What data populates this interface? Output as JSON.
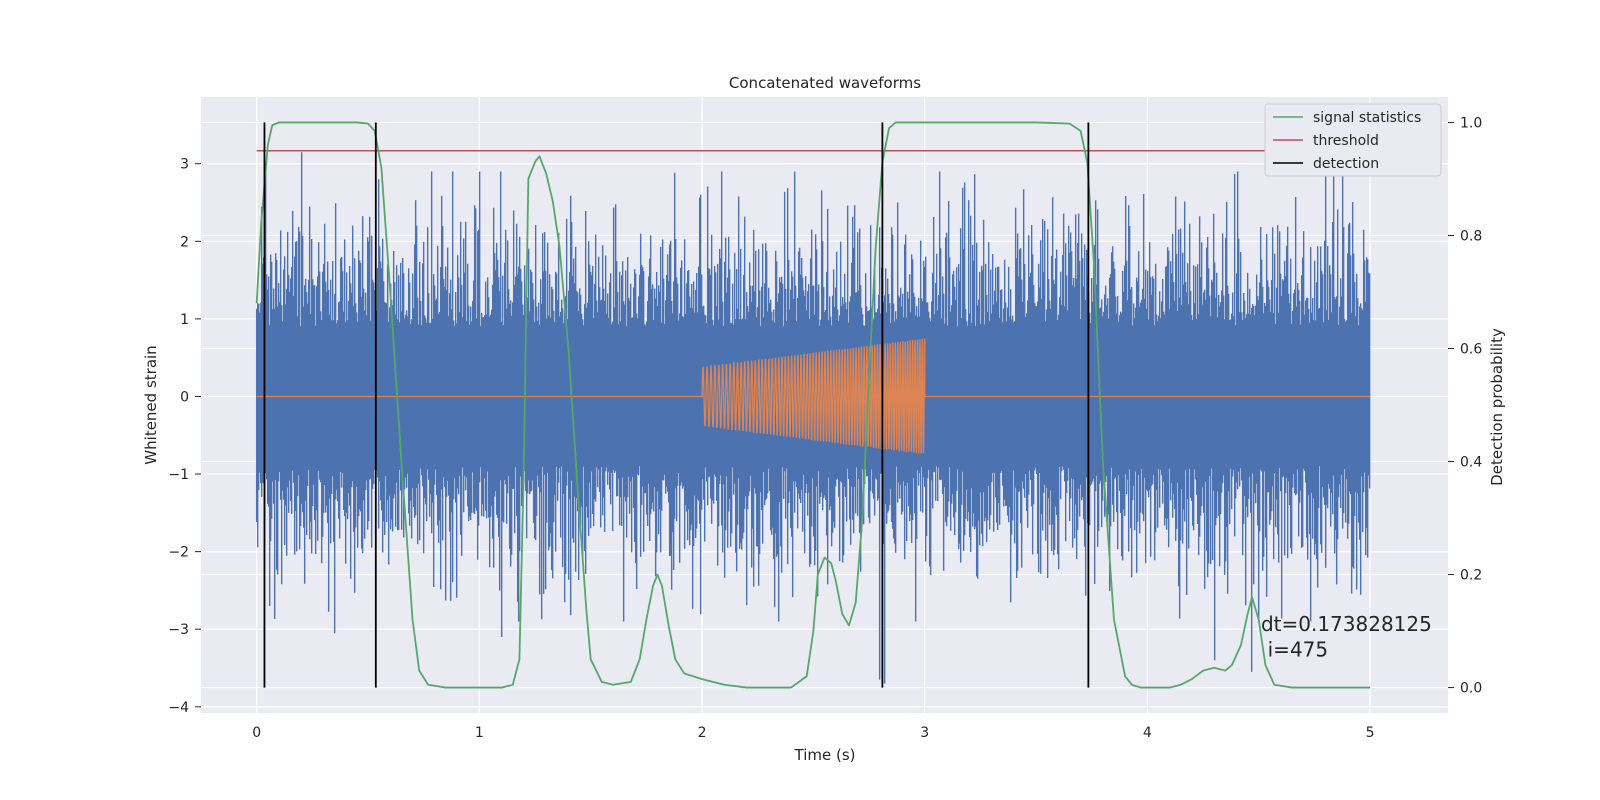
{
  "chart_data": {
    "type": "line",
    "title": "Concatenated waveforms",
    "xlabel": "Time (s)",
    "ylabel": "Whitened strain",
    "y2label": "Detection probability",
    "xlim": [
      -0.25,
      5.35
    ],
    "ylim": [
      -4.08,
      3.86
    ],
    "y2lim": [
      -0.045,
      1.045
    ],
    "x_ticks": [
      0,
      1,
      2,
      3,
      4,
      5
    ],
    "x_tick_labels": [
      "0",
      "1",
      "2",
      "3",
      "4",
      "5"
    ],
    "y_ticks": [
      -4,
      -3,
      -2,
      -1,
      0,
      1,
      2,
      3
    ],
    "y_tick_labels": [
      "−4",
      "−3",
      "−2",
      "−1",
      "0",
      "1",
      "2",
      "3"
    ],
    "y2_ticks": [
      0.0,
      0.2,
      0.4,
      0.6,
      0.8,
      1.0
    ],
    "y2_tick_labels": [
      "0.0",
      "0.2",
      "0.4",
      "0.6",
      "0.8",
      "1.0"
    ],
    "grid": true,
    "legend_position": "top-right",
    "series": [
      {
        "name": "",
        "kind": "noise",
        "axis": "left",
        "color": "#4c72b0",
        "x_range": [
          0,
          5
        ],
        "typical_range": [
          -2.6,
          2.6
        ],
        "peaks": [
          {
            "x": 0.04,
            "y": 3.0
          },
          {
            "x": 0.2,
            "y": 3.15
          },
          {
            "x": 0.55,
            "y": 2.8
          },
          {
            "x": 0.06,
            "y": -2.7
          },
          {
            "x": 0.35,
            "y": -3.05
          },
          {
            "x": 1.1,
            "y": -3.1
          },
          {
            "x": 2.8,
            "y": -3.65
          },
          {
            "x": 2.82,
            "y": -3.7
          },
          {
            "x": 4.3,
            "y": -3.4
          },
          {
            "x": 4.47,
            "y": -3.55
          }
        ]
      },
      {
        "name": "",
        "kind": "chirp",
        "axis": "left",
        "color": "#dd8452",
        "x_range": [
          2,
          3
        ],
        "amplitude_start": 0.38,
        "amplitude_end": 0.75
      },
      {
        "name": "signal statistics",
        "axis": "right",
        "color": "#55a868",
        "x": [
          0,
          0.02,
          0.05,
          0.07,
          0.1,
          0.15,
          0.3,
          0.45,
          0.5,
          0.53,
          0.56,
          0.6,
          0.65,
          0.7,
          0.73,
          0.77,
          0.85,
          1.0,
          1.1,
          1.15,
          1.18,
          1.2,
          1.22,
          1.25,
          1.27,
          1.3,
          1.33,
          1.36,
          1.4,
          1.44,
          1.48,
          1.5,
          1.55,
          1.6,
          1.68,
          1.72,
          1.75,
          1.78,
          1.8,
          1.82,
          1.85,
          1.88,
          1.92,
          2.0,
          2.1,
          2.2,
          2.4,
          2.47,
          2.5,
          2.52,
          2.55,
          2.58,
          2.6,
          2.63,
          2.66,
          2.69,
          2.72,
          2.75,
          2.78,
          2.81,
          2.84,
          2.87,
          2.9,
          2.95,
          3.2,
          3.5,
          3.65,
          3.7,
          3.73,
          3.76,
          3.8,
          3.85,
          3.9,
          3.93,
          3.97,
          4.0,
          4.1,
          4.15,
          4.2,
          4.25,
          4.3,
          4.35,
          4.38,
          4.42,
          4.45,
          4.47,
          4.5,
          4.53,
          4.57,
          4.65,
          4.8,
          5.0
        ],
        "values": [
          0.68,
          0.82,
          0.96,
          0.995,
          1.0,
          1.0,
          1.0,
          1.0,
          0.998,
          0.985,
          0.92,
          0.7,
          0.4,
          0.12,
          0.03,
          0.005,
          0.0,
          0.0,
          0.0,
          0.005,
          0.05,
          0.4,
          0.9,
          0.93,
          0.94,
          0.91,
          0.86,
          0.78,
          0.6,
          0.36,
          0.14,
          0.05,
          0.01,
          0.005,
          0.01,
          0.05,
          0.12,
          0.18,
          0.2,
          0.18,
          0.11,
          0.05,
          0.025,
          0.015,
          0.005,
          0.0,
          0.0,
          0.02,
          0.1,
          0.2,
          0.23,
          0.22,
          0.19,
          0.13,
          0.11,
          0.15,
          0.3,
          0.55,
          0.78,
          0.93,
          0.99,
          1.0,
          1.0,
          1.0,
          1.0,
          1.0,
          0.998,
          0.985,
          0.93,
          0.75,
          0.4,
          0.12,
          0.02,
          0.005,
          0.0,
          0.0,
          0.0,
          0.005,
          0.015,
          0.03,
          0.035,
          0.03,
          0.04,
          0.075,
          0.13,
          0.16,
          0.12,
          0.04,
          0.005,
          0.0,
          0.0,
          0.0
        ]
      },
      {
        "name": "threshold",
        "axis": "right",
        "color": "#c44e52",
        "x": [
          0,
          5
        ],
        "values": [
          0.95,
          0.95
        ]
      },
      {
        "name": "detection",
        "axis": "right",
        "color": "#000000",
        "vlines": [
          0.035,
          0.535,
          2.81,
          3.735
        ]
      }
    ],
    "annotations": [
      {
        "text": "dt=0.173828125",
        "x": 4.51,
        "y2": 0.1
      },
      {
        "text": "i=475",
        "x": 4.54,
        "y2": 0.055
      }
    ]
  }
}
